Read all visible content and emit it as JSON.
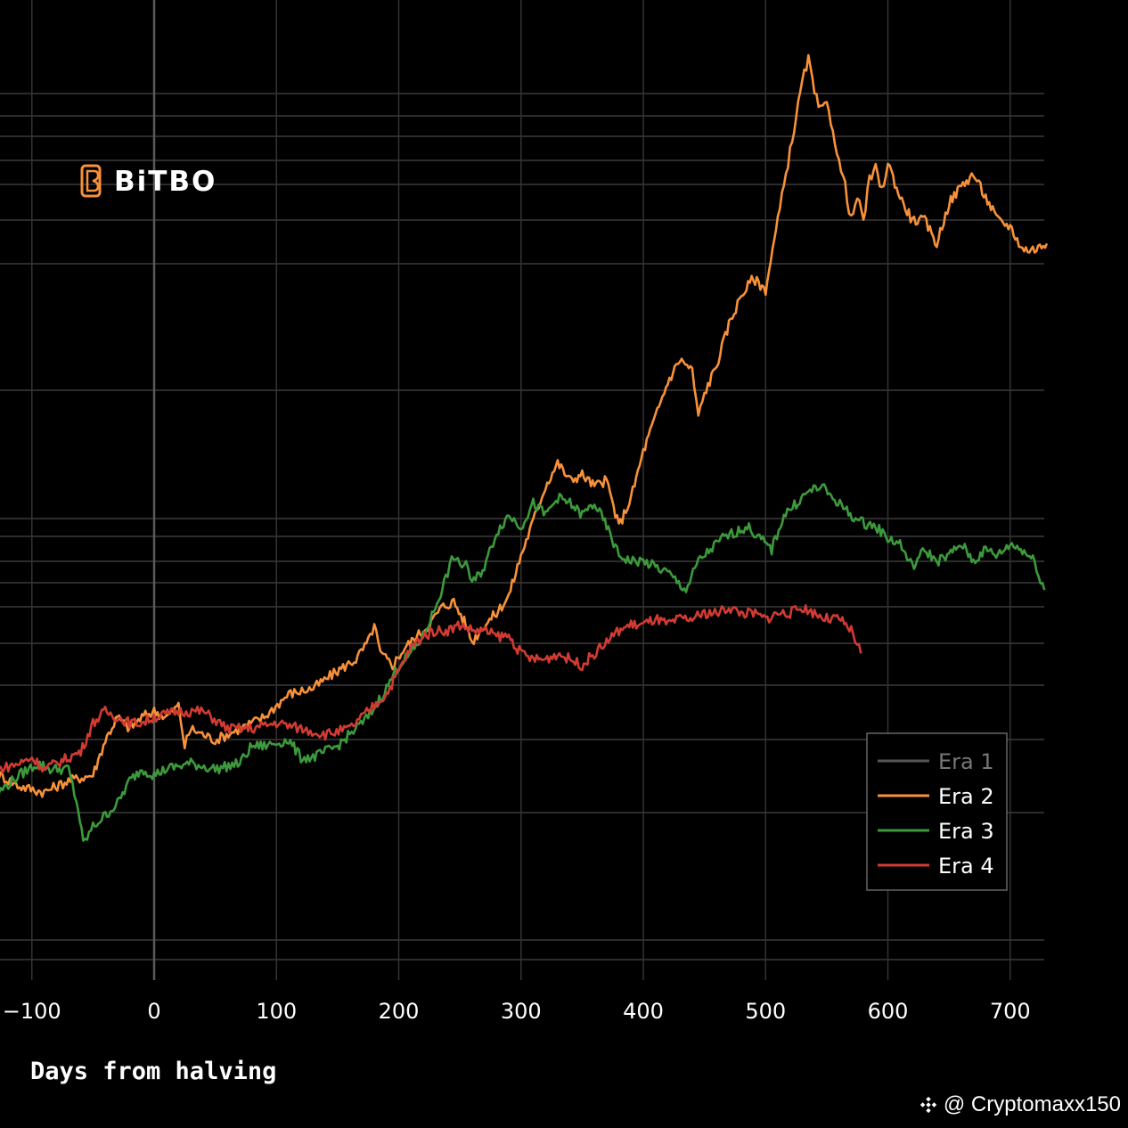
{
  "chart_data": {
    "type": "line",
    "title": "",
    "xlabel": "Days from halving",
    "ylabel": "",
    "xlim": [
      -127,
      730
    ],
    "ylim": [
      0,
      1
    ],
    "x_ticks": [
      -100,
      0,
      100,
      200,
      300,
      400,
      500,
      600,
      700
    ],
    "x_tick_labels": [
      "−100",
      "0",
      "100",
      "200",
      "300",
      "400",
      "500",
      "600",
      "700"
    ],
    "y_scale": "log (tick labels not visible)",
    "legend": {
      "position": "bottom-right",
      "entries": [
        "Era 1",
        "Era 2",
        "Era 3",
        "Era 4"
      ]
    },
    "series": [
      {
        "name": "Era 1",
        "color": "#555555",
        "points": []
      },
      {
        "name": "Era 2",
        "color": "#f7913a",
        "points": [
          [
            -127,
            0.34
          ],
          [
            -110,
            0.32
          ],
          [
            -90,
            0.31
          ],
          [
            -70,
            0.33
          ],
          [
            -50,
            0.34
          ],
          [
            -40,
            0.4
          ],
          [
            -30,
            0.44
          ],
          [
            -20,
            0.42
          ],
          [
            -10,
            0.44
          ],
          [
            0,
            0.45
          ],
          [
            10,
            0.44
          ],
          [
            20,
            0.46
          ],
          [
            25,
            0.39
          ],
          [
            30,
            0.42
          ],
          [
            50,
            0.4
          ],
          [
            70,
            0.42
          ],
          [
            90,
            0.44
          ],
          [
            110,
            0.48
          ],
          [
            130,
            0.49
          ],
          [
            150,
            0.52
          ],
          [
            165,
            0.54
          ],
          [
            175,
            0.57
          ],
          [
            180,
            0.6
          ],
          [
            185,
            0.55
          ],
          [
            195,
            0.53
          ],
          [
            205,
            0.56
          ],
          [
            215,
            0.58
          ],
          [
            225,
            0.6
          ],
          [
            235,
            0.63
          ],
          [
            245,
            0.64
          ],
          [
            255,
            0.6
          ],
          [
            260,
            0.57
          ],
          [
            270,
            0.6
          ],
          [
            280,
            0.62
          ],
          [
            290,
            0.65
          ],
          [
            300,
            0.72
          ],
          [
            310,
            0.78
          ],
          [
            320,
            0.84
          ],
          [
            330,
            0.88
          ],
          [
            340,
            0.85
          ],
          [
            350,
            0.86
          ],
          [
            360,
            0.84
          ],
          [
            370,
            0.85
          ],
          [
            380,
            0.77
          ],
          [
            390,
            0.82
          ],
          [
            400,
            0.9
          ],
          [
            410,
            0.96
          ],
          [
            420,
            1.02
          ],
          [
            430,
            1.06
          ],
          [
            440,
            1.04
          ],
          [
            445,
            0.96
          ],
          [
            450,
            1.0
          ],
          [
            460,
            1.05
          ],
          [
            470,
            1.12
          ],
          [
            480,
            1.17
          ],
          [
            490,
            1.2
          ],
          [
            500,
            1.18
          ],
          [
            510,
            1.3
          ],
          [
            515,
            1.36
          ],
          [
            520,
            1.42
          ],
          [
            525,
            1.48
          ],
          [
            530,
            1.54
          ],
          [
            535,
            1.58
          ],
          [
            540,
            1.52
          ],
          [
            545,
            1.49
          ],
          [
            550,
            1.5
          ],
          [
            555,
            1.46
          ],
          [
            560,
            1.4
          ],
          [
            565,
            1.36
          ],
          [
            570,
            1.3
          ],
          [
            575,
            1.34
          ],
          [
            580,
            1.3
          ],
          [
            585,
            1.37
          ],
          [
            590,
            1.39
          ],
          [
            595,
            1.35
          ],
          [
            600,
            1.4
          ],
          [
            610,
            1.34
          ],
          [
            620,
            1.3
          ],
          [
            630,
            1.3
          ],
          [
            640,
            1.26
          ],
          [
            650,
            1.33
          ],
          [
            660,
            1.36
          ],
          [
            670,
            1.38
          ],
          [
            680,
            1.34
          ],
          [
            690,
            1.3
          ],
          [
            700,
            1.29
          ],
          [
            710,
            1.25
          ],
          [
            720,
            1.25
          ],
          [
            730,
            1.26
          ]
        ]
      },
      {
        "name": "Era 3",
        "color": "#3c9a3c",
        "points": [
          [
            -127,
            0.31
          ],
          [
            -110,
            0.34
          ],
          [
            -95,
            0.36
          ],
          [
            -85,
            0.35
          ],
          [
            -70,
            0.35
          ],
          [
            -62,
            0.28
          ],
          [
            -58,
            0.22
          ],
          [
            -50,
            0.25
          ],
          [
            -40,
            0.27
          ],
          [
            -30,
            0.29
          ],
          [
            -20,
            0.33
          ],
          [
            -10,
            0.35
          ],
          [
            0,
            0.34
          ],
          [
            10,
            0.35
          ],
          [
            30,
            0.36
          ],
          [
            50,
            0.35
          ],
          [
            70,
            0.36
          ],
          [
            80,
            0.39
          ],
          [
            90,
            0.39
          ],
          [
            110,
            0.4
          ],
          [
            120,
            0.37
          ],
          [
            130,
            0.37
          ],
          [
            140,
            0.38
          ],
          [
            150,
            0.39
          ],
          [
            160,
            0.41
          ],
          [
            175,
            0.44
          ],
          [
            190,
            0.49
          ],
          [
            200,
            0.53
          ],
          [
            210,
            0.55
          ],
          [
            220,
            0.58
          ],
          [
            230,
            0.63
          ],
          [
            240,
            0.69
          ],
          [
            245,
            0.72
          ],
          [
            250,
            0.7
          ],
          [
            255,
            0.71
          ],
          [
            260,
            0.67
          ],
          [
            270,
            0.7
          ],
          [
            280,
            0.76
          ],
          [
            290,
            0.79
          ],
          [
            300,
            0.77
          ],
          [
            310,
            0.81
          ],
          [
            320,
            0.79
          ],
          [
            330,
            0.82
          ],
          [
            340,
            0.81
          ],
          [
            350,
            0.79
          ],
          [
            360,
            0.81
          ],
          [
            370,
            0.77
          ],
          [
            380,
            0.72
          ],
          [
            390,
            0.71
          ],
          [
            400,
            0.71
          ],
          [
            410,
            0.7
          ],
          [
            420,
            0.69
          ],
          [
            435,
            0.66
          ],
          [
            445,
            0.71
          ],
          [
            455,
            0.73
          ],
          [
            465,
            0.75
          ],
          [
            475,
            0.76
          ],
          [
            485,
            0.77
          ],
          [
            495,
            0.75
          ],
          [
            505,
            0.73
          ],
          [
            515,
            0.79
          ],
          [
            525,
            0.81
          ],
          [
            535,
            0.83
          ],
          [
            545,
            0.84
          ],
          [
            555,
            0.82
          ],
          [
            565,
            0.8
          ],
          [
            575,
            0.78
          ],
          [
            590,
            0.77
          ],
          [
            600,
            0.75
          ],
          [
            610,
            0.74
          ],
          [
            620,
            0.7
          ],
          [
            630,
            0.73
          ],
          [
            640,
            0.71
          ],
          [
            650,
            0.72
          ],
          [
            660,
            0.74
          ],
          [
            670,
            0.71
          ],
          [
            680,
            0.73
          ],
          [
            690,
            0.72
          ],
          [
            700,
            0.74
          ],
          [
            710,
            0.73
          ],
          [
            720,
            0.71
          ],
          [
            728,
            0.66
          ]
        ]
      },
      {
        "name": "Era 4",
        "color": "#d13b32",
        "points": [
          [
            -127,
            0.35
          ],
          [
            -110,
            0.36
          ],
          [
            -100,
            0.37
          ],
          [
            -90,
            0.35
          ],
          [
            -80,
            0.36
          ],
          [
            -70,
            0.37
          ],
          [
            -60,
            0.38
          ],
          [
            -50,
            0.43
          ],
          [
            -40,
            0.45
          ],
          [
            -30,
            0.44
          ],
          [
            -20,
            0.43
          ],
          [
            -10,
            0.43
          ],
          [
            0,
            0.44
          ],
          [
            20,
            0.45
          ],
          [
            40,
            0.45
          ],
          [
            60,
            0.42
          ],
          [
            80,
            0.42
          ],
          [
            100,
            0.43
          ],
          [
            120,
            0.42
          ],
          [
            140,
            0.41
          ],
          [
            160,
            0.42
          ],
          [
            180,
            0.46
          ],
          [
            190,
            0.48
          ],
          [
            200,
            0.52
          ],
          [
            210,
            0.56
          ],
          [
            220,
            0.58
          ],
          [
            230,
            0.59
          ],
          [
            240,
            0.59
          ],
          [
            250,
            0.6
          ],
          [
            260,
            0.59
          ],
          [
            270,
            0.59
          ],
          [
            280,
            0.58
          ],
          [
            290,
            0.58
          ],
          [
            300,
            0.55
          ],
          [
            310,
            0.54
          ],
          [
            320,
            0.54
          ],
          [
            330,
            0.55
          ],
          [
            340,
            0.54
          ],
          [
            350,
            0.53
          ],
          [
            360,
            0.55
          ],
          [
            370,
            0.57
          ],
          [
            380,
            0.59
          ],
          [
            390,
            0.6
          ],
          [
            400,
            0.6
          ],
          [
            410,
            0.61
          ],
          [
            420,
            0.6
          ],
          [
            430,
            0.61
          ],
          [
            440,
            0.61
          ],
          [
            450,
            0.62
          ],
          [
            460,
            0.62
          ],
          [
            470,
            0.63
          ],
          [
            480,
            0.62
          ],
          [
            490,
            0.62
          ],
          [
            500,
            0.61
          ],
          [
            510,
            0.62
          ],
          [
            520,
            0.62
          ],
          [
            530,
            0.63
          ],
          [
            540,
            0.62
          ],
          [
            550,
            0.61
          ],
          [
            560,
            0.61
          ],
          [
            570,
            0.59
          ],
          [
            578,
            0.55
          ]
        ]
      }
    ]
  },
  "logo": {
    "text": "BiTBO",
    "color": "#f7913a"
  },
  "watermark": {
    "text": "@ Cryptomaxx150"
  }
}
